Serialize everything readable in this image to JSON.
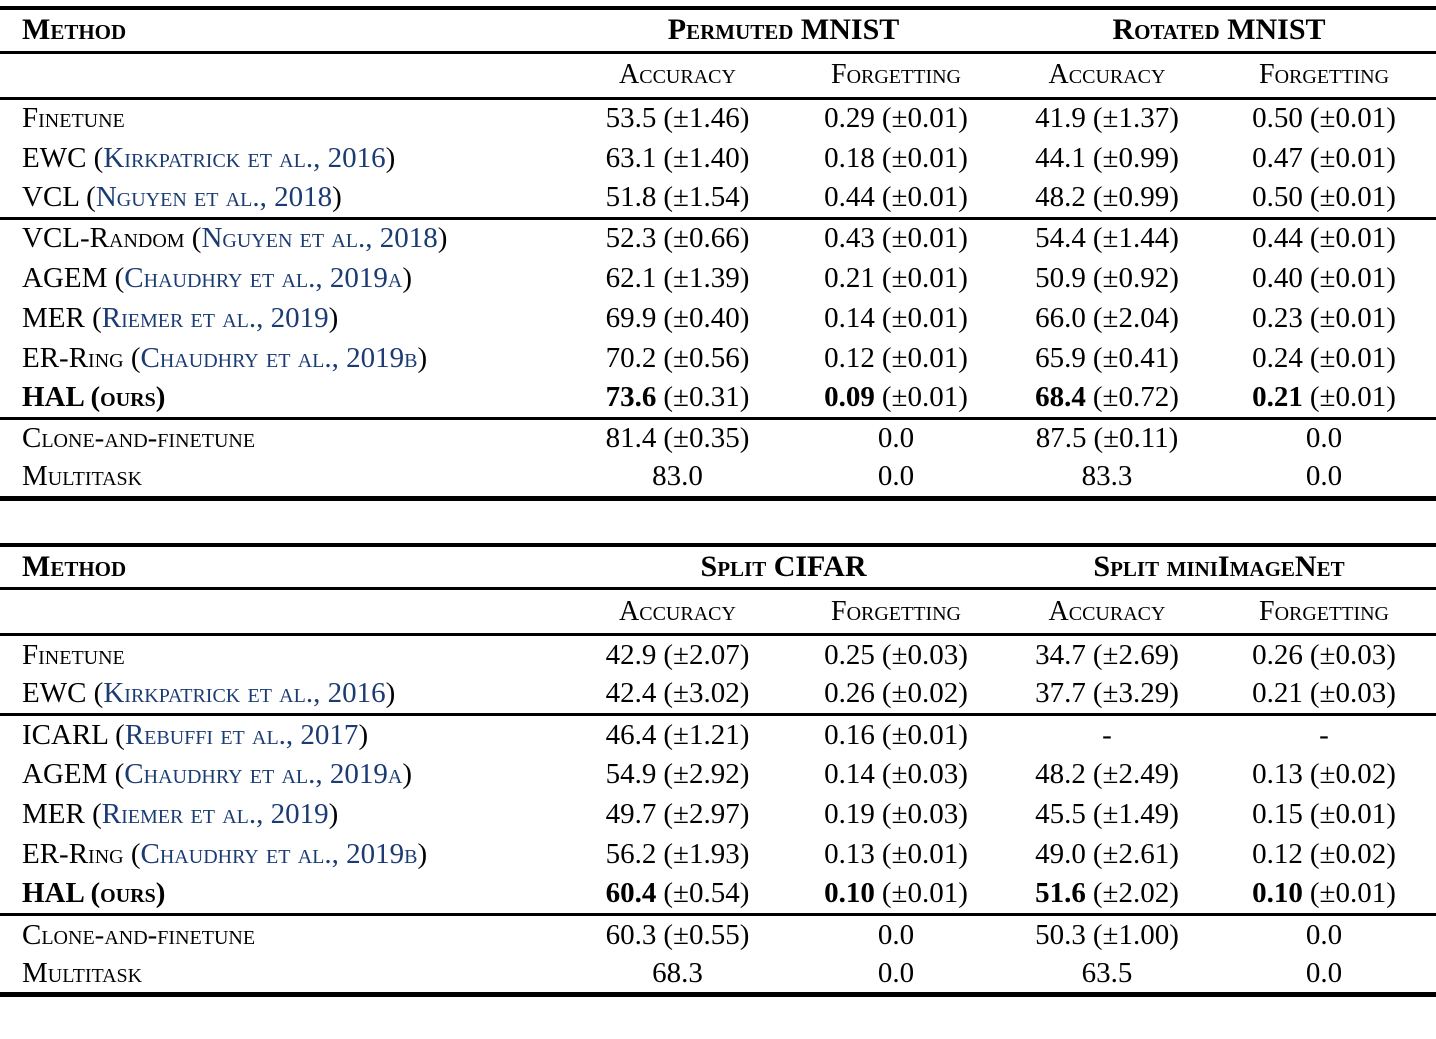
{
  "colors": {
    "citation_link": "#1b3b73",
    "text": "#000000",
    "background": "#ffffff"
  },
  "tables": [
    {
      "id": "mnist",
      "header": {
        "method": "Method",
        "groups": [
          {
            "label": "Permuted MNIST"
          },
          {
            "label": "Rotated MNIST"
          }
        ],
        "subheaders": [
          "Accuracy",
          "Forgetting",
          "Accuracy",
          "Forgetting"
        ]
      },
      "blocks": [
        {
          "rows": [
            {
              "method": {
                "text": "Finetune"
              },
              "cells": [
                {
                  "v": "53.5",
                  "e": "(±1.46)"
                },
                {
                  "v": "0.29",
                  "e": "(±0.01)"
                },
                {
                  "v": "41.9",
                  "e": "(±1.37)"
                },
                {
                  "v": "0.50",
                  "e": "(±0.01)"
                }
              ]
            },
            {
              "method": {
                "text": "EWC (",
                "cite": "Kirkpatrick et al., 2016",
                "close": ")"
              },
              "cells": [
                {
                  "v": "63.1",
                  "e": "(±1.40)"
                },
                {
                  "v": "0.18",
                  "e": "(±0.01)"
                },
                {
                  "v": "44.1",
                  "e": "(±0.99)"
                },
                {
                  "v": "0.47",
                  "e": "(±0.01)"
                }
              ]
            },
            {
              "method": {
                "text": "VCL (",
                "cite": "Nguyen et al., 2018",
                "close": ")"
              },
              "cells": [
                {
                  "v": "51.8",
                  "e": "(±1.54)"
                },
                {
                  "v": "0.44",
                  "e": "(±0.01)"
                },
                {
                  "v": "48.2",
                  "e": "(±0.99)"
                },
                {
                  "v": "0.50",
                  "e": "(±0.01)"
                }
              ]
            }
          ]
        },
        {
          "rows": [
            {
              "method": {
                "text": "VCL-Random (",
                "cite": "Nguyen et al., 2018",
                "close": ")"
              },
              "cells": [
                {
                  "v": "52.3",
                  "e": "(±0.66)"
                },
                {
                  "v": "0.43",
                  "e": "(±0.01)"
                },
                {
                  "v": "54.4",
                  "e": "(±1.44)"
                },
                {
                  "v": "0.44",
                  "e": "(±0.01)"
                }
              ]
            },
            {
              "method": {
                "text": "AGEM (",
                "cite": "Chaudhry et al., 2019a",
                "close": ")"
              },
              "cells": [
                {
                  "v": "62.1",
                  "e": "(±1.39)"
                },
                {
                  "v": "0.21",
                  "e": "(±0.01)"
                },
                {
                  "v": "50.9",
                  "e": "(±0.92)"
                },
                {
                  "v": "0.40",
                  "e": "(±0.01)"
                }
              ]
            },
            {
              "method": {
                "text": "MER (",
                "cite": "Riemer et al., 2019",
                "close": ")"
              },
              "cells": [
                {
                  "v": "69.9",
                  "e": "(±0.40)"
                },
                {
                  "v": "0.14",
                  "e": "(±0.01)"
                },
                {
                  "v": "66.0",
                  "e": "(±2.04)"
                },
                {
                  "v": "0.23",
                  "e": "(±0.01)"
                }
              ]
            },
            {
              "method": {
                "text": "ER-Ring (",
                "cite": "Chaudhry et al., 2019b",
                "close": ")"
              },
              "cells": [
                {
                  "v": "70.2",
                  "e": "(±0.56)"
                },
                {
                  "v": "0.12",
                  "e": "(±0.01)"
                },
                {
                  "v": "65.9",
                  "e": "(±0.41)"
                },
                {
                  "v": "0.24",
                  "e": "(±0.01)"
                }
              ]
            },
            {
              "method": {
                "text": "HAL (ours)",
                "bold": true
              },
              "cells": [
                {
                  "v": "73.6",
                  "e": "(±0.31)",
                  "b": true
                },
                {
                  "v": "0.09",
                  "e": "(±0.01)",
                  "b": true
                },
                {
                  "v": "68.4",
                  "e": "(±0.72)",
                  "b": true
                },
                {
                  "v": "0.21",
                  "e": "(±0.01)",
                  "b": true
                }
              ]
            }
          ]
        },
        {
          "rows": [
            {
              "method": {
                "text": "Clone-and-finetune"
              },
              "cells": [
                {
                  "v": "81.4",
                  "e": "(±0.35)"
                },
                {
                  "v": "0.0"
                },
                {
                  "v": "87.5",
                  "e": "(±0.11)"
                },
                {
                  "v": "0.0"
                }
              ]
            },
            {
              "method": {
                "text": "Multitask"
              },
              "cells": [
                {
                  "v": "83.0"
                },
                {
                  "v": "0.0"
                },
                {
                  "v": "83.3"
                },
                {
                  "v": "0.0"
                }
              ]
            }
          ]
        }
      ]
    },
    {
      "id": "cifar",
      "header": {
        "method": "Method",
        "groups": [
          {
            "label": "Split CIFAR"
          },
          {
            "label": "Split miniImageNet"
          }
        ],
        "subheaders": [
          "Accuracy",
          "Forgetting",
          "Accuracy",
          "Forgetting"
        ]
      },
      "blocks": [
        {
          "rows": [
            {
              "method": {
                "text": "Finetune"
              },
              "cells": [
                {
                  "v": "42.9",
                  "e": "(±2.07)"
                },
                {
                  "v": "0.25",
                  "e": "(±0.03)"
                },
                {
                  "v": "34.7",
                  "e": "(±2.69)"
                },
                {
                  "v": "0.26",
                  "e": "(±0.03)"
                }
              ]
            },
            {
              "method": {
                "text": "EWC (",
                "cite": "Kirkpatrick et al., 2016",
                "close": ")"
              },
              "cells": [
                {
                  "v": "42.4",
                  "e": "(±3.02)"
                },
                {
                  "v": "0.26",
                  "e": "(±0.02)"
                },
                {
                  "v": "37.7",
                  "e": "(±3.29)"
                },
                {
                  "v": "0.21",
                  "e": "(±0.03)"
                }
              ]
            }
          ]
        },
        {
          "rows": [
            {
              "method": {
                "text": "ICARL (",
                "cite": "Rebuffi et al., 2017",
                "close": ")"
              },
              "cells": [
                {
                  "v": "46.4",
                  "e": "(±1.21)"
                },
                {
                  "v": "0.16",
                  "e": "(±0.01)"
                },
                {
                  "v": "-"
                },
                {
                  "v": "-"
                }
              ]
            },
            {
              "method": {
                "text": "AGEM (",
                "cite": "Chaudhry et al., 2019a",
                "close": ")"
              },
              "cells": [
                {
                  "v": "54.9",
                  "e": "(±2.92)"
                },
                {
                  "v": "0.14",
                  "e": "(±0.03)"
                },
                {
                  "v": "48.2",
                  "e": "(±2.49)"
                },
                {
                  "v": "0.13",
                  "e": "(±0.02)"
                }
              ]
            },
            {
              "method": {
                "text": "MER (",
                "cite": "Riemer et al., 2019",
                "close": ")"
              },
              "cells": [
                {
                  "v": "49.7",
                  "e": "(±2.97)"
                },
                {
                  "v": "0.19",
                  "e": "(±0.03)"
                },
                {
                  "v": "45.5",
                  "e": "(±1.49)"
                },
                {
                  "v": "0.15",
                  "e": "(±0.01)"
                }
              ]
            },
            {
              "method": {
                "text": "ER-Ring (",
                "cite": "Chaudhry et al., 2019b",
                "close": ")"
              },
              "cells": [
                {
                  "v": "56.2",
                  "e": "(±1.93)"
                },
                {
                  "v": "0.13",
                  "e": "(±0.01)"
                },
                {
                  "v": "49.0",
                  "e": "(±2.61)"
                },
                {
                  "v": "0.12",
                  "e": "(±0.02)"
                }
              ]
            },
            {
              "method": {
                "text": "HAL (ours)",
                "bold": true
              },
              "cells": [
                {
                  "v": "60.4",
                  "e": "(±0.54)",
                  "b": true
                },
                {
                  "v": "0.10",
                  "e": "(±0.01)",
                  "b": true
                },
                {
                  "v": "51.6",
                  "e": "(±2.02)",
                  "b": true
                },
                {
                  "v": "0.10",
                  "e": "(±0.01)",
                  "b": true
                }
              ]
            }
          ]
        },
        {
          "rows": [
            {
              "method": {
                "text": "Clone-and-finetune"
              },
              "cells": [
                {
                  "v": "60.3",
                  "e": "(±0.55)"
                },
                {
                  "v": "0.0"
                },
                {
                  "v": "50.3",
                  "e": "(±1.00)"
                },
                {
                  "v": "0.0"
                }
              ]
            },
            {
              "method": {
                "text": "Multitask"
              },
              "cells": [
                {
                  "v": "68.3"
                },
                {
                  "v": "0.0"
                },
                {
                  "v": "63.5"
                },
                {
                  "v": "0.0"
                }
              ]
            }
          ]
        }
      ]
    }
  ]
}
